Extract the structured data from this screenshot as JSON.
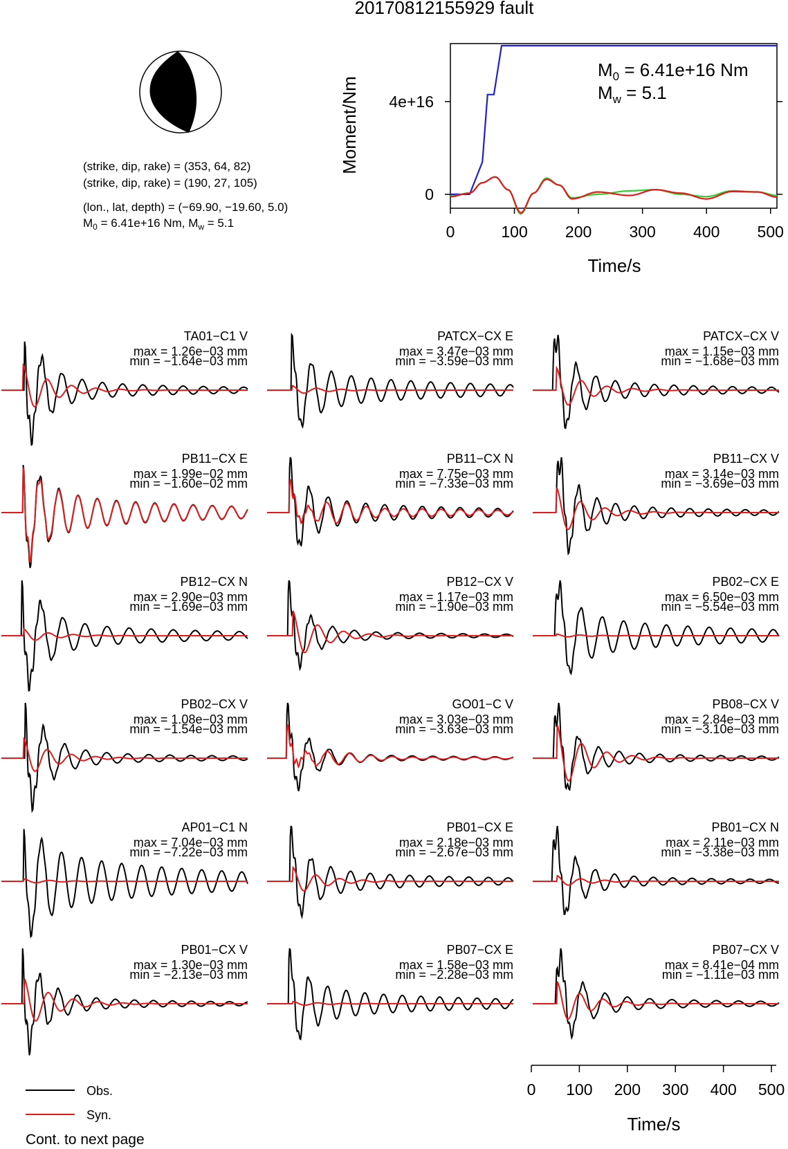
{
  "header": {
    "title": "20170812155929 fault"
  },
  "mechanism": {
    "line1": "(strike, dip, rake) = (353, 64, 82)",
    "line2": "(strike, dip, rake) = (190, 27, 105)",
    "line3": "(lon., lat, depth) = (−69.90, −19.60, 5.0)",
    "line4_prefix": "M",
    "line4_sub": "0",
    "line4_rest": " = 6.41e+16 Nm, M",
    "line4_sub2": "w",
    "line4_end": " = 5.1"
  },
  "moment_annotation": {
    "m0_prefix": "M",
    "m0_sub": "0",
    "m0_rest": " = 6.41e+16 Nm",
    "mw_prefix": "M",
    "mw_sub": "w",
    "mw_rest": " = 5.1"
  },
  "colors": {
    "obs": "#000000",
    "syn": "#e31a1c",
    "moment": "#1f1fd6",
    "stf": "#33cc33"
  },
  "legend": {
    "obs": "Obs.",
    "syn": "Syn.",
    "footer": "Cont. to next page"
  },
  "chart_data": [
    {
      "type": "line",
      "xlabel": "Time/s",
      "ylabel": "Moment/Nm",
      "xlim": [
        0,
        510
      ],
      "ylim": [
        -6000000000000000.0,
        6.5e+16
      ],
      "xticks": [
        "0",
        "100",
        "200",
        "300",
        "400",
        "500"
      ],
      "yticks": [
        "0",
        "4e+16"
      ],
      "series": [
        {
          "values": [
            [
              0,
              0
            ],
            [
              30,
              0
            ],
            [
              50,
              1.4e+16
            ],
            [
              58,
              4.3e+16
            ],
            [
              68,
              4.3e+16
            ],
            [
              80,
              6.41e+16
            ],
            [
              510,
              6.41e+16
            ]
          ]
        },
        {
          "values": [
            [
              0,
              -800000000000000.0
            ],
            [
              30,
              500000000000000.0
            ],
            [
              50,
              5000000000000000.0
            ],
            [
              70,
              7500000000000000.0
            ],
            [
              90,
              2000000000000000.0
            ],
            [
              110,
              -8500000000000000.0
            ],
            [
              130,
              500000000000000.0
            ],
            [
              150,
              7000000000000000.0
            ],
            [
              170,
              4000000000000000.0
            ],
            [
              190,
              -1500000000000000.0
            ],
            [
              230,
              0
            ],
            [
              280,
              1500000000000000.0
            ],
            [
              320,
              2000000000000000.0
            ],
            [
              360,
              0
            ],
            [
              400,
              -1000000000000000.0
            ],
            [
              440,
              1500000000000000.0
            ],
            [
              480,
              1000000000000000.0
            ],
            [
              510,
              -500000000000000.0
            ]
          ]
        },
        {
          "values": [
            [
              0,
              -1000000000000000.0
            ],
            [
              30,
              500000000000000.0
            ],
            [
              50,
              5000000000000000.0
            ],
            [
              70,
              7500000000000000.0
            ],
            [
              90,
              2000000000000000.0
            ],
            [
              110,
              -8000000000000000.0
            ],
            [
              130,
              500000000000000.0
            ],
            [
              150,
              6500000000000000.0
            ],
            [
              170,
              4000000000000000.0
            ],
            [
              190,
              -2000000000000000.0
            ],
            [
              230,
              1000000000000000.0
            ],
            [
              280,
              -500000000000000.0
            ],
            [
              320,
              2000000000000000.0
            ],
            [
              360,
              500000000000000.0
            ],
            [
              400,
              -2000000000000000.0
            ],
            [
              440,
              1200000000000000.0
            ],
            [
              480,
              1000000000000000.0
            ],
            [
              510,
              -1200000000000000.0
            ]
          ]
        }
      ]
    },
    {
      "type": "line",
      "xlabel": "Time/s",
      "xlim": [
        0,
        510
      ],
      "xticks": [
        "0",
        "100",
        "200",
        "300",
        "400",
        "500"
      ],
      "stations": [
        {
          "name": "TA01−C1 V",
          "max": "max = 1.26e−03 mm",
          "min": "min = −1.64e−03 mm",
          "obs_amp": 1.0,
          "syn_amp": 0.45,
          "fit": 0.1,
          "coda": 0.18
        },
        {
          "name": "PATCX−CX E",
          "max": "max = 3.47e−03 mm",
          "min": "min = −3.59e−03 mm",
          "obs_amp": 1.0,
          "syn_amp": 0.08,
          "fit": 0.0,
          "coda": 0.55
        },
        {
          "name": "PATCX−CX V",
          "max": "max = 1.15e−03 mm",
          "min": "min = −1.68e−03 mm",
          "obs_amp": 1.0,
          "syn_amp": 0.4,
          "fit": 0.15,
          "coda": 0.18
        },
        {
          "name": "PB11−CX E",
          "max": "max = 1.99e−02 mm",
          "min": "min = −1.60e−02 mm",
          "obs_amp": 1.0,
          "syn_amp": 1.0,
          "fit": 0.95,
          "coda": 0.45
        },
        {
          "name": "PB11−CX N",
          "max": "max = 7.75e−03 mm",
          "min": "min = −7.33e−03 mm",
          "obs_amp": 1.0,
          "syn_amp": 0.85,
          "fit": 0.7,
          "coda": 0.35
        },
        {
          "name": "PB11−CX V",
          "max": "max = 3.14e−03 mm",
          "min": "min = −3.69e−03 mm",
          "obs_amp": 1.0,
          "syn_amp": 0.45,
          "fit": 0.3,
          "coda": 0.15
        },
        {
          "name": "PB12−CX N",
          "max": "max = 2.90e−03 mm",
          "min": "min = −1.69e−03 mm",
          "obs_amp": 1.0,
          "syn_amp": 0.12,
          "fit": 0.0,
          "coda": 0.25
        },
        {
          "name": "PB12−CX V",
          "max": "max = 1.17e−03 mm",
          "min": "min = −1.90e−03 mm",
          "obs_amp": 1.0,
          "syn_amp": 0.45,
          "fit": 0.2,
          "coda": 0.12
        },
        {
          "name": "PB02−CX E",
          "max": "max = 6.50e−03 mm",
          "min": "min = −5.54e−03 mm",
          "obs_amp": 1.0,
          "syn_amp": 0.03,
          "fit": 0.0,
          "coda": 0.5
        },
        {
          "name": "PB02−CX V",
          "max": "max = 1.08e−03 mm",
          "min": "min = −1.54e−03 mm",
          "obs_amp": 1.0,
          "syn_amp": 0.35,
          "fit": 0.2,
          "coda": 0.12
        },
        {
          "name": "GO01−C V",
          "max": "max = 3.03e−03 mm",
          "min": "min = −3.63e−03 mm",
          "obs_amp": 1.0,
          "syn_amp": 0.8,
          "fit": 0.75,
          "coda": 0.1
        },
        {
          "name": "PB08−CX V",
          "max": "max = 2.84e−03 mm",
          "min": "min = −3.10e−03 mm",
          "obs_amp": 1.0,
          "syn_amp": 0.6,
          "fit": 0.4,
          "coda": 0.12
        },
        {
          "name": "AP01−C1 N",
          "max": "max = 7.04e−03 mm",
          "min": "min = −7.22e−03 mm",
          "obs_amp": 1.0,
          "syn_amp": 0.04,
          "fit": 0.0,
          "coda": 0.9
        },
        {
          "name": "PB01−CX E",
          "max": "max = 2.18e−03 mm",
          "min": "min = −2.67e−03 mm",
          "obs_amp": 1.0,
          "syn_amp": 0.25,
          "fit": 0.1,
          "coda": 0.3
        },
        {
          "name": "PB01−CX N",
          "max": "max = 2.11e−03 mm",
          "min": "min = −3.38e−03 mm",
          "obs_amp": 1.0,
          "syn_amp": 0.1,
          "fit": 0.0,
          "coda": 0.12
        },
        {
          "name": "PB01−CX V",
          "max": "max = 1.30e−03 mm",
          "min": "min = −2.13e−03 mm",
          "obs_amp": 1.0,
          "syn_amp": 0.45,
          "fit": 0.2,
          "coda": 0.12
        },
        {
          "name": "PB07−CX E",
          "max": "max = 1.58e−03 mm",
          "min": "min = −2.28e−03 mm",
          "obs_amp": 1.0,
          "syn_amp": 0.04,
          "fit": 0.0,
          "coda": 0.45
        },
        {
          "name": "PB07−CX V",
          "max": "max = 8.41e−04 mm",
          "min": "min = −1.11e−03 mm",
          "obs_amp": 1.0,
          "syn_amp": 0.4,
          "fit": 0.0,
          "coda": 0.15
        }
      ]
    }
  ]
}
